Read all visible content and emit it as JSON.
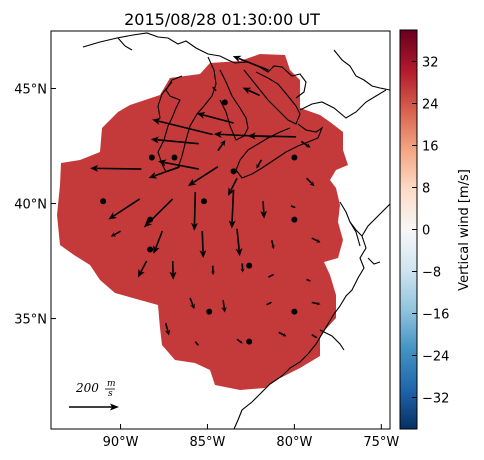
{
  "title": "2015/08/28 01:30:00 UT",
  "map": {
    "x_ticks": [
      {
        "label": "90°W",
        "lon": -90
      },
      {
        "label": "85°W",
        "lon": -85
      },
      {
        "label": "80°W",
        "lon": -80
      },
      {
        "label": "75°W",
        "lon": -75
      }
    ],
    "y_ticks": [
      {
        "label": "45°N",
        "lat": 45
      },
      {
        "label": "40°N",
        "lat": 40
      },
      {
        "label": "35°N",
        "lat": 35
      }
    ],
    "lon_range": [
      -94,
      -74.5
    ],
    "lat_range": [
      30.2,
      47.5
    ],
    "field_color": "#c43a3b"
  },
  "colorbar": {
    "label": "Vertical wind [m/s]",
    "ticks": [
      "32",
      "24",
      "16",
      "8",
      "0",
      "−8",
      "−16",
      "−24",
      "−32"
    ],
    "range": [
      -38,
      38
    ],
    "colors": [
      "#053061",
      "#2166ac",
      "#4393c3",
      "#92c5de",
      "#d1e5f0",
      "#f7f7f7",
      "#fddbc7",
      "#f4a582",
      "#d6604d",
      "#b2182b",
      "#67001f"
    ]
  },
  "scale_key": {
    "value": "200",
    "unit_num": "m",
    "unit_den": "s"
  },
  "stations": [
    {
      "lon": -88.2,
      "lat": 42.0
    },
    {
      "lon": -86.9,
      "lat": 42.0
    },
    {
      "lon": -80.0,
      "lat": 42.0
    },
    {
      "lon": -84.0,
      "lat": 44.4
    },
    {
      "lon": -83.5,
      "lat": 41.4
    },
    {
      "lon": -91.0,
      "lat": 40.1
    },
    {
      "lon": -85.2,
      "lat": 40.1
    },
    {
      "lon": -88.3,
      "lat": 39.3
    },
    {
      "lon": -80.0,
      "lat": 39.3
    },
    {
      "lon": -88.3,
      "lat": 38.0
    },
    {
      "lon": -82.6,
      "lat": 37.3
    },
    {
      "lon": -84.9,
      "lat": 35.3
    },
    {
      "lon": -80.0,
      "lat": 35.3
    },
    {
      "lon": -82.6,
      "lat": 34.0
    }
  ],
  "vectors": [
    {
      "lon": -81.5,
      "lat": 45.8,
      "u": -142,
      "v": 56
    },
    {
      "lon": -82.0,
      "lat": 44.7,
      "u": -68,
      "v": 31
    },
    {
      "lon": -84.5,
      "lat": 44.9,
      "u": -16,
      "v": 17
    },
    {
      "lon": -83.5,
      "lat": 43.5,
      "u": -147,
      "v": 39
    },
    {
      "lon": -85.5,
      "lat": 42.6,
      "u": -192,
      "v": 18
    },
    {
      "lon": -79.9,
      "lat": 42.9,
      "u": -194,
      "v": 4
    },
    {
      "lon": -81.3,
      "lat": 42.9,
      "u": -232,
      "v": 11
    },
    {
      "lon": -84.7,
      "lat": 43.0,
      "u": -242,
      "v": 60
    },
    {
      "lon": -88.8,
      "lat": 41.5,
      "u": -205,
      "v": 3
    },
    {
      "lon": -85.5,
      "lat": 41.5,
      "u": -163,
      "v": 31
    },
    {
      "lon": -84.4,
      "lat": 42.3,
      "u": 30,
      "v": 42
    },
    {
      "lon": -79.6,
      "lat": 42.7,
      "u": 37,
      "v": -25
    },
    {
      "lon": -81.9,
      "lat": 41.9,
      "u": -20,
      "v": -35
    },
    {
      "lon": -79.3,
      "lat": 41.1,
      "u": 32,
      "v": -32
    },
    {
      "lon": -84.4,
      "lat": 41.6,
      "u": -120,
      "v": -77
    },
    {
      "lon": -86.6,
      "lat": 41.6,
      "u": -124,
      "v": -45
    },
    {
      "lon": -88.9,
      "lat": 40.2,
      "u": -125,
      "v": -82
    },
    {
      "lon": -87.0,
      "lat": 40.2,
      "u": -115,
      "v": -114
    },
    {
      "lon": -83.5,
      "lat": 40.6,
      "u": -7,
      "v": -155
    },
    {
      "lon": -85.7,
      "lat": 40.5,
      "u": -4,
      "v": -155
    },
    {
      "lon": -83.3,
      "lat": 41.1,
      "u": -36,
      "v": -71
    },
    {
      "lon": -81.8,
      "lat": 40.1,
      "u": 4,
      "v": -70
    },
    {
      "lon": -80.2,
      "lat": 39.9,
      "u": 20,
      "v": -8
    },
    {
      "lon": -90.0,
      "lat": 38.8,
      "u": -39,
      "v": -22
    },
    {
      "lon": -87.6,
      "lat": 38.8,
      "u": -35,
      "v": -91
    },
    {
      "lon": -85.3,
      "lat": 38.8,
      "u": 4,
      "v": -108
    },
    {
      "lon": -83.3,
      "lat": 38.9,
      "u": 11,
      "v": -110
    },
    {
      "lon": -81.3,
      "lat": 38.4,
      "u": 8,
      "v": -35
    },
    {
      "lon": -79.0,
      "lat": 38.5,
      "u": 35,
      "v": -18
    },
    {
      "lon": -88.5,
      "lat": 37.5,
      "u": -35,
      "v": -66
    },
    {
      "lon": -87.0,
      "lat": 37.5,
      "u": 2,
      "v": -75
    },
    {
      "lon": -84.7,
      "lat": 37.3,
      "u": 2,
      "v": -38
    },
    {
      "lon": -83.0,
      "lat": 37.4,
      "u": 2,
      "v": -37
    },
    {
      "lon": -81.5,
      "lat": 36.8,
      "u": 24,
      "v": 12
    },
    {
      "lon": -79.3,
      "lat": 36.7,
      "u": 17,
      "v": -7
    },
    {
      "lon": -86.0,
      "lat": 35.9,
      "u": 17,
      "v": -45
    },
    {
      "lon": -84.1,
      "lat": 35.8,
      "u": 7,
      "v": -50
    },
    {
      "lon": -81.6,
      "lat": 35.6,
      "u": 22,
      "v": 11
    },
    {
      "lon": -79.0,
      "lat": 35.7,
      "u": 35,
      "v": -7
    },
    {
      "lon": -87.4,
      "lat": 34.8,
      "u": 13,
      "v": -49
    },
    {
      "lon": -85.7,
      "lat": 34.0,
      "u": 14,
      "v": -17
    },
    {
      "lon": -83.3,
      "lat": 34.1,
      "u": 23,
      "v": -17
    },
    {
      "lon": -80.9,
      "lat": 34.4,
      "u": 31,
      "v": -16
    },
    {
      "lon": -79.0,
      "lat": 34.3,
      "u": 23,
      "v": -14
    }
  ]
}
